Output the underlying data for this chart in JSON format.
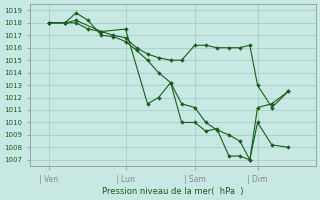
{
  "bg_color": "#c8e8e4",
  "grid_color": "#9bbfba",
  "line_color": "#1a5c1a",
  "ylim": [
    1006.5,
    1019.5
  ],
  "yticks": [
    1007,
    1008,
    1009,
    1010,
    1011,
    1012,
    1013,
    1014,
    1015,
    1016,
    1017,
    1018,
    1019
  ],
  "xlabel": "Pression niveau de la mer(  hPa  )",
  "xtick_labels": [
    "| Ven",
    "| Lun",
    "| Sam",
    "| Dim"
  ],
  "xtick_positions": [
    72,
    142,
    205,
    262
  ],
  "xlim": [
    55,
    315
  ],
  "line1_x": [
    72,
    87,
    97,
    108,
    120,
    131,
    142,
    152,
    162,
    172,
    183,
    193,
    205,
    215,
    225,
    236,
    246,
    255,
    262,
    275,
    290
  ],
  "line1_y": [
    1018.0,
    1018.0,
    1018.8,
    1018.2,
    1017.0,
    1016.9,
    1016.5,
    1015.8,
    1015.0,
    1014.0,
    1013.2,
    1011.5,
    1011.2,
    1010.0,
    1009.4,
    1009.0,
    1008.5,
    1007.0,
    1011.2,
    1011.5,
    1012.5
  ],
  "line2_x": [
    72,
    87,
    97,
    108,
    120,
    131,
    142,
    152,
    162,
    172,
    183,
    193,
    205,
    215,
    225,
    236,
    246,
    255,
    262,
    275,
    290
  ],
  "line2_y": [
    1018.0,
    1018.0,
    1018.0,
    1017.5,
    1017.3,
    1017.0,
    1016.8,
    1016.0,
    1015.5,
    1015.2,
    1015.0,
    1015.0,
    1016.2,
    1016.2,
    1016.0,
    1016.0,
    1016.0,
    1016.2,
    1013.0,
    1011.2,
    1012.5
  ],
  "line3_x": [
    72,
    87,
    97,
    120,
    142,
    162,
    172,
    183,
    193,
    205,
    215,
    225,
    236,
    246,
    255,
    262,
    275,
    290
  ],
  "line3_y": [
    1018.0,
    1018.0,
    1018.2,
    1017.3,
    1017.5,
    1011.5,
    1012.0,
    1013.2,
    1010.0,
    1010.0,
    1009.3,
    1009.5,
    1007.3,
    1007.3,
    1007.0,
    1010.0,
    1008.2,
    1008.0
  ]
}
